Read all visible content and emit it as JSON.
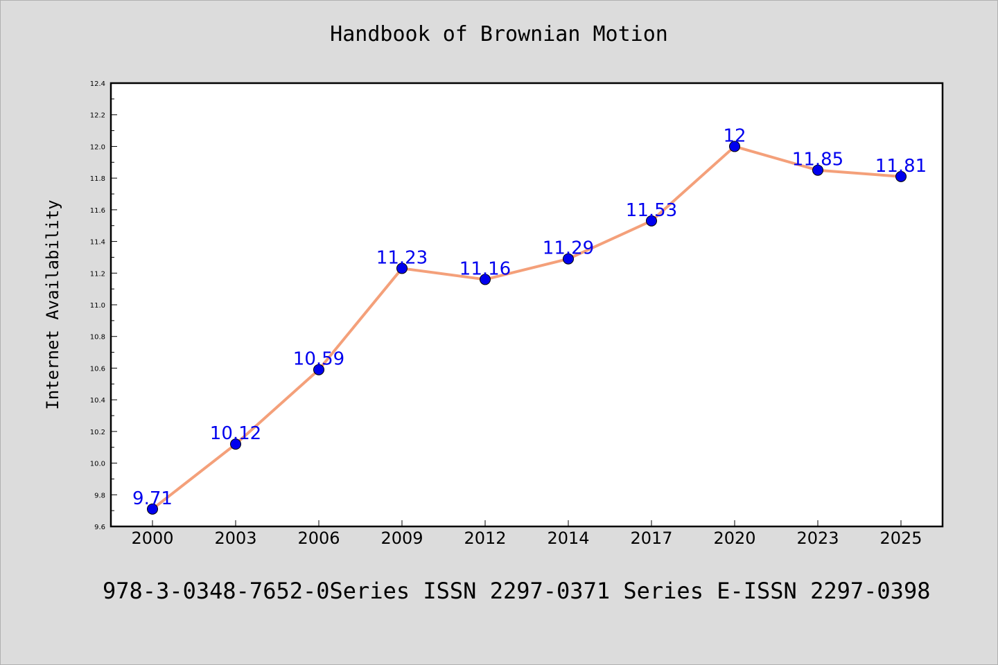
{
  "title": "Handbook of Brownian Motion",
  "footer": "978-3-0348-7652-0Series ISSN 2297-0371 Series E-ISSN 2297-0398",
  "colors": {
    "background": "#dcdcdc",
    "plot_area": "#ffffff",
    "line": "#f4a07a",
    "marker": "#0000ee",
    "label": "#0000ee"
  },
  "chart_data": {
    "type": "line",
    "title": "Handbook of Brownian Motion",
    "xlabel": "",
    "ylabel": "Internet Availability",
    "categories": [
      "2000",
      "2003",
      "2006",
      "2009",
      "2012",
      "2014",
      "2017",
      "2020",
      "2023",
      "2025"
    ],
    "values": [
      9.71,
      10.12,
      10.59,
      11.23,
      11.16,
      11.29,
      11.53,
      12,
      11.85,
      11.81
    ],
    "data_labels": [
      "9.71",
      "10.12",
      "10.59",
      "11.23",
      "11.16",
      "11.29",
      "11.53",
      "12",
      "11.85",
      "11.81"
    ],
    "ylim": [
      9.6,
      12.4
    ],
    "y_ticks": [
      "9.6",
      "9.8",
      "10.0",
      "10.2",
      "10.4",
      "10.6",
      "10.8",
      "11.0",
      "11.2",
      "11.4",
      "11.6",
      "11.8",
      "12.0",
      "12.2",
      "12.4"
    ],
    "grid": false,
    "legend": "none"
  }
}
